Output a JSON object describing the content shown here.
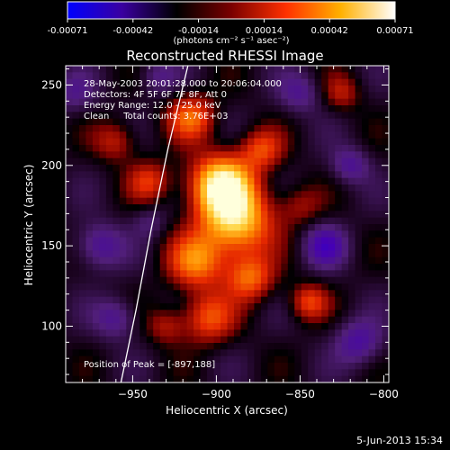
{
  "chart_data": {
    "type": "heatmap",
    "title": "Reconstructed RHESSI Image",
    "xlabel": "Heliocentric X (arcsec)",
    "ylabel": "Heliocentric Y (arcsec)",
    "xlim": [
      -990,
      -797
    ],
    "ylim": [
      65,
      262
    ],
    "xticks": [
      -950,
      -900,
      -850,
      -800
    ],
    "yticks": [
      100,
      150,
      200,
      250
    ],
    "colorbar": {
      "ticks": [
        "-0.00071",
        "-0.00042",
        "-0.00014",
        "0.00014",
        "0.00042",
        "0.00071"
      ],
      "range": [
        -0.00071,
        0.00071
      ],
      "units_label": "(photons cm⁻² s⁻¹ asec⁻²)",
      "colors": [
        "#0000ff",
        "#3a00a0",
        "#000000",
        "#7a0000",
        "#ff3000",
        "#ffb000",
        "#ffffff"
      ]
    },
    "annotations": [
      "28-May-2003 20:01:28.000 to 20:06:04.000",
      "Detectors: 4F 5F 6F 7F 8F, Att 0",
      "Energy Range: 12.0 - 25.0 keV",
      "Clean     Total counts: 3.76E+03"
    ],
    "peak_label": "Position of Peak = [-897,188]",
    "peak": [
      -897,
      188
    ],
    "sources": [
      {
        "x": -897,
        "y": 188,
        "amp": 1.0,
        "sigma": 13
      },
      {
        "x": -888,
        "y": 165,
        "amp": 0.85,
        "sigma": 15
      },
      {
        "x": -912,
        "y": 140,
        "amp": 0.6,
        "sigma": 12
      },
      {
        "x": -880,
        "y": 130,
        "amp": 0.55,
        "sigma": 10
      },
      {
        "x": -905,
        "y": 105,
        "amp": 0.5,
        "sigma": 11
      },
      {
        "x": -873,
        "y": 210,
        "amp": 0.45,
        "sigma": 9
      },
      {
        "x": -915,
        "y": 230,
        "amp": 0.55,
        "sigma": 10
      },
      {
        "x": -940,
        "y": 190,
        "amp": 0.4,
        "sigma": 9
      },
      {
        "x": -960,
        "y": 215,
        "amp": 0.35,
        "sigma": 9
      },
      {
        "x": -845,
        "y": 115,
        "amp": 0.45,
        "sigma": 8
      },
      {
        "x": -825,
        "y": 245,
        "amp": 0.3,
        "sigma": 8
      },
      {
        "x": -930,
        "y": 100,
        "amp": 0.3,
        "sigma": 8
      },
      {
        "x": -850,
        "y": 175,
        "amp": 0.25,
        "sigma": 9
      },
      {
        "x": -970,
        "y": 150,
        "amp": -0.4,
        "sigma": 10
      },
      {
        "x": -960,
        "y": 105,
        "amp": -0.35,
        "sigma": 9
      },
      {
        "x": -835,
        "y": 150,
        "amp": -0.45,
        "sigma": 9
      },
      {
        "x": -815,
        "y": 90,
        "amp": -0.4,
        "sigma": 10
      },
      {
        "x": -850,
        "y": 245,
        "amp": -0.3,
        "sigma": 9
      },
      {
        "x": -820,
        "y": 200,
        "amp": -0.35,
        "sigma": 8
      },
      {
        "x": -935,
        "y": 255,
        "amp": -0.25,
        "sigma": 8
      },
      {
        "x": -985,
        "y": 245,
        "amp": -0.25,
        "sigma": 9
      },
      {
        "x": -940,
        "y": 165,
        "amp": -0.2,
        "sigma": 7
      }
    ],
    "limb": [
      [
        -957,
        65
      ],
      [
        -948,
        110
      ],
      [
        -939,
        160
      ],
      [
        -929,
        210
      ],
      [
        -917,
        262
      ]
    ]
  },
  "footer": {
    "date": "5-Jun-2013 15:34"
  }
}
